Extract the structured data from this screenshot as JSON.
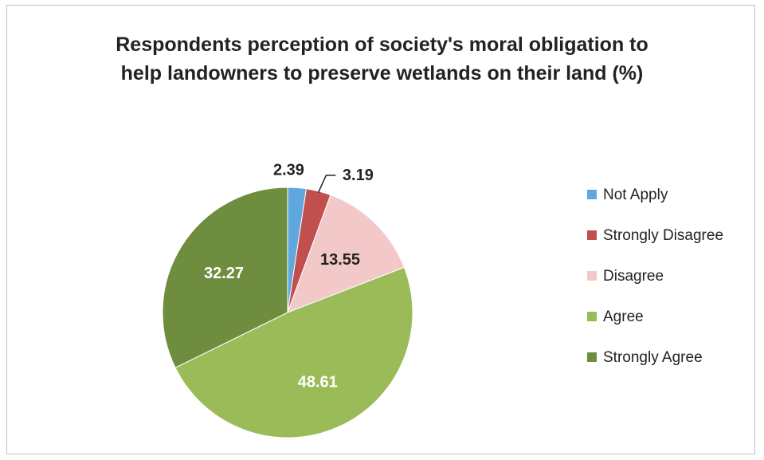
{
  "chart_data": {
    "type": "pie",
    "title_lines": [
      "Respondents perception of society's moral obligation to",
      "help landowners to preserve wetlands on their land (%)"
    ],
    "categories": [
      "Not Apply",
      "Strongly Disagree",
      "Disagree",
      "Agree",
      "Strongly Agree"
    ],
    "values": [
      2.39,
      3.19,
      13.55,
      48.61,
      32.27
    ],
    "data_labels": [
      "2.39",
      "3.19",
      "13.55",
      "48.61",
      "32.27"
    ],
    "colors": [
      "#5fa7dd",
      "#c0504d",
      "#f2c9c8",
      "#9bbb59",
      "#6f8d3f"
    ],
    "label_colors": [
      "#222222",
      "#222222",
      "#222222",
      "#ffffff",
      "#ffffff"
    ],
    "legend_position": "right",
    "start_angle_deg": 0,
    "direction": "clockwise"
  }
}
